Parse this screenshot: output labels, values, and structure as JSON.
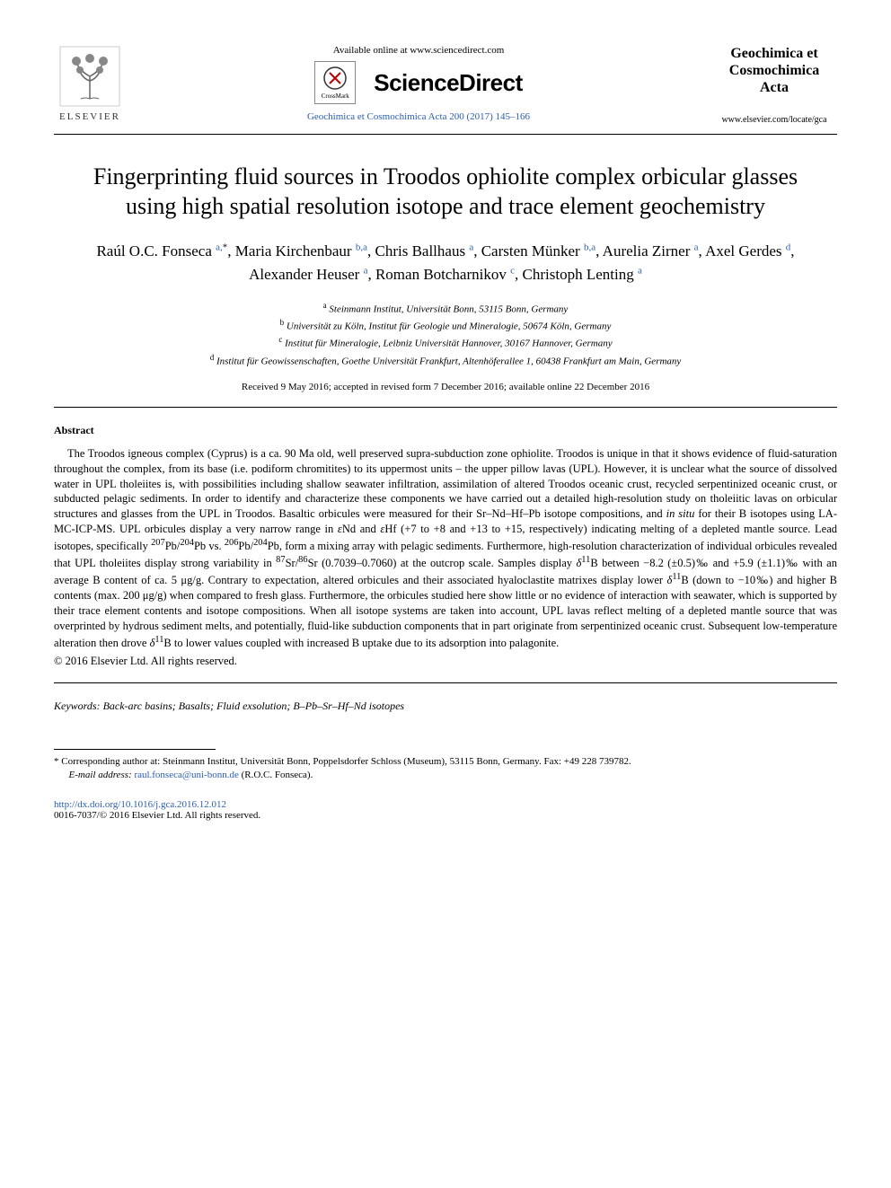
{
  "header": {
    "publisher_name": "ELSEVIER",
    "available_text": "Available online at www.sciencedirect.com",
    "crossmark_label": "CrossMark",
    "platform_name": "ScienceDirect",
    "citation": "Geochimica et Cosmochimica Acta 200 (2017) 145–166",
    "journal_title_line1": "Geochimica et",
    "journal_title_line2": "Cosmochimica",
    "journal_title_line3": "Acta",
    "journal_url": "www.elsevier.com/locate/gca"
  },
  "title": "Fingerprinting fluid sources in Troodos ophiolite complex orbicular glasses using high spatial resolution isotope and trace element geochemistry",
  "authors": [
    {
      "name": "Raúl O.C. Fonseca",
      "affil": "a",
      "corr": true
    },
    {
      "name": "Maria Kirchenbaur",
      "affil": "b,a"
    },
    {
      "name": "Chris Ballhaus",
      "affil": "a"
    },
    {
      "name": "Carsten Münker",
      "affil": "b,a"
    },
    {
      "name": "Aurelia Zirner",
      "affil": "a"
    },
    {
      "name": "Axel Gerdes",
      "affil": "d"
    },
    {
      "name": "Alexander Heuser",
      "affil": "a"
    },
    {
      "name": "Roman Botcharnikov",
      "affil": "c"
    },
    {
      "name": "Christoph Lenting",
      "affil": "a"
    }
  ],
  "affiliations": {
    "a": "Steinmann Institut, Universität Bonn, 53115 Bonn, Germany",
    "b": "Universität zu Köln, Institut für Geologie und Mineralogie, 50674 Köln, Germany",
    "c": "Institut für Mineralogie, Leibniz Universität Hannover, 30167 Hannover, Germany",
    "d": "Institut für Geowissenschaften, Goethe Universität Frankfurt, Altenhöferallee 1, 60438 Frankfurt am Main, Germany"
  },
  "dates": "Received 9 May 2016; accepted in revised form 7 December 2016; available online 22 December 2016",
  "abstract_label": "Abstract",
  "abstract_body": "The Troodos igneous complex (Cyprus) is a ca. 90 Ma old, well preserved supra-subduction zone ophiolite. Troodos is unique in that it shows evidence of fluid-saturation throughout the complex, from its base (i.e. podiform chromitites) to its uppermost units – the upper pillow lavas (UPL). However, it is unclear what the source of dissolved water in UPL tholeiites is, with possibilities including shallow seawater infiltration, assimilation of altered Troodos oceanic crust, recycled serpentinized oceanic crust, or subducted pelagic sediments. In order to identify and characterize these components we have carried out a detailed high-resolution study on tholeiitic lavas on orbicular structures and glasses from the UPL in Troodos. Basaltic orbicules were measured for their Sr–Nd–Hf–Pb isotope compositions, and in situ for their B isotopes using LA-MC-ICP-MS. UPL orbicules display a very narrow range in εNd and εHf (+7 to +8 and +13 to +15, respectively) indicating melting of a depleted mantle source. Lead isotopes, specifically ²⁰⁷Pb/²⁰⁴Pb vs. ²⁰⁶Pb/²⁰⁴Pb, form a mixing array with pelagic sediments. Furthermore, high-resolution characterization of individual orbicules revealed that UPL tholeiites display strong variability in ⁸⁷Sr/⁸⁶Sr (0.7039–0.7060) at the outcrop scale. Samples display δ¹¹B between −8.2 (±0.5)‰ and +5.9 (±1.1)‰ with an average B content of ca. 5 μg/g. Contrary to expectation, altered orbicules and their associated hyaloclastite matrixes display lower δ¹¹B (down to −10‰) and higher B contents (max. 200 μg/g) when compared to fresh glass. Furthermore, the orbicules studied here show little or no evidence of interaction with seawater, which is supported by their trace element contents and isotope compositions. When all isotope systems are taken into account, UPL lavas reflect melting of a depleted mantle source that was overprinted by hydrous sediment melts, and potentially, fluid-like subduction components that in part originate from serpentinized oceanic crust. Subsequent low-temperature alteration then drove δ¹¹B to lower values coupled with increased B uptake due to its adsorption into palagonite.",
  "copyright_inline": "© 2016 Elsevier Ltd. All rights reserved.",
  "keywords_label": "Keywords:",
  "keywords": "Back-arc basins; Basalts; Fluid exsolution; B–Pb–Sr–Hf–Nd isotopes",
  "footnote": {
    "corr_text": "Corresponding author at: Steinmann Institut, Universität Bonn, Poppelsdorfer Schloss (Museum), 53115 Bonn, Germany. Fax: +49 228 739782.",
    "email_label": "E-mail address:",
    "email": "raul.fonseca@uni-bonn.de",
    "email_author": "(R.O.C. Fonseca)."
  },
  "doi": "http://dx.doi.org/10.1016/j.gca.2016.12.012",
  "copyright_bottom": "0016-7037/© 2016 Elsevier Ltd. All rights reserved.",
  "colors": {
    "link": "#2a5db0",
    "text": "#000000",
    "elsevier_orange": "#ff6600"
  }
}
